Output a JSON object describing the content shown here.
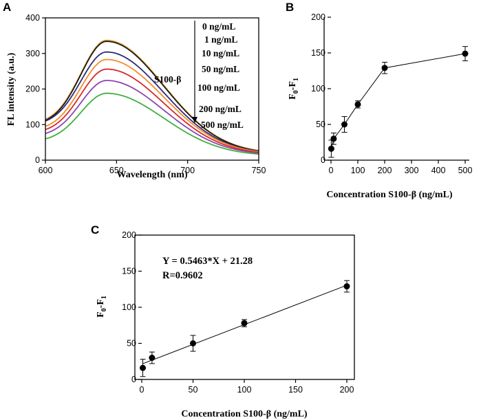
{
  "chart_data": [
    {
      "id": "A",
      "panel_label": "A",
      "type": "line",
      "title": "",
      "xlabel": "Wavelength (nm)",
      "ylabel": "FL intensity (a.u.)",
      "xlim": [
        600,
        750
      ],
      "ylim": [
        0,
        400
      ],
      "xticks": [
        600,
        650,
        700,
        750
      ],
      "yticks": [
        0,
        100,
        200,
        300,
        400
      ],
      "peak_x": 643,
      "analyte_label": "S100-β",
      "series": [
        {
          "name": "0  ng/mL",
          "color": "#e8a33a",
          "base600": 115,
          "peak": 337,
          "tail750": 27
        },
        {
          "name": "1 ng/mL",
          "color": "#1a1a1a",
          "base600": 112,
          "peak": 334,
          "tail750": 26
        },
        {
          "name": "10 ng/mL",
          "color": "#2b2a78",
          "base600": 110,
          "peak": 304,
          "tail750": 25
        },
        {
          "name": "50 ng/mL",
          "color": "#f28c28",
          "base600": 95,
          "peak": 283,
          "tail750": 24
        },
        {
          "name": "100 ng/mL",
          "color": "#d62828",
          "base600": 86,
          "peak": 256,
          "tail750": 22
        },
        {
          "name": "200 ng/mL",
          "color": "#8e44ad",
          "base600": 75,
          "peak": 224,
          "tail750": 20
        },
        {
          "name": "500 ng/mL",
          "color": "#3fae3f",
          "base600": 60,
          "peak": 188,
          "tail750": 17
        }
      ]
    },
    {
      "id": "B",
      "panel_label": "B",
      "type": "line",
      "title": "",
      "xlabel": "Concentration S100-β (ng/mL)",
      "ylabel_main": "F",
      "ylabel_sub0": "0",
      "ylabel_mid": "-F",
      "ylabel_sub1": "1",
      "xlim": [
        0,
        500
      ],
      "ylim": [
        0,
        200
      ],
      "xticks": [
        0,
        100,
        200,
        300,
        400,
        500
      ],
      "yticks": [
        0,
        50,
        100,
        150,
        200
      ],
      "x": [
        1,
        10,
        50,
        100,
        200,
        500
      ],
      "y": [
        16,
        30,
        50,
        78,
        129,
        149
      ],
      "err": [
        12,
        8,
        11,
        5,
        8,
        10
      ]
    },
    {
      "id": "C",
      "panel_label": "C",
      "type": "scatter",
      "title": "",
      "xlabel": "Concentration S100-β (ng/mL)",
      "ylabel_main": "F",
      "ylabel_sub0": "0",
      "ylabel_mid": "-F",
      "ylabel_sub1": "1",
      "xlim": [
        0,
        200
      ],
      "ylim": [
        0,
        200
      ],
      "xticks": [
        0,
        50,
        100,
        150,
        200
      ],
      "yticks": [
        0,
        50,
        100,
        150,
        200
      ],
      "x": [
        1,
        10,
        50,
        100,
        200
      ],
      "y": [
        16,
        30,
        50,
        78,
        129
      ],
      "err": [
        12,
        8,
        11,
        5,
        8
      ],
      "fit": {
        "slope": 0.5463,
        "intercept": 21.28
      },
      "equation": "Y = 0.5463*X + 21.28",
      "r_value": "R=0.9602"
    }
  ]
}
